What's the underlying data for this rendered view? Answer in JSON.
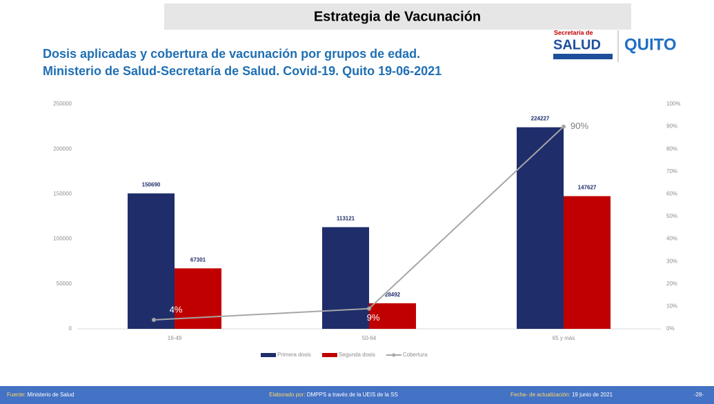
{
  "header": {
    "banner": "Estrategia de Vacunación",
    "logo_small": "Secretaría de",
    "logo_main": "SALUD",
    "logo_city": "QUITO"
  },
  "chart_data": {
    "type": "bar",
    "title": "Dosis aplicadas y cobertura de vacunación por grupos de edad.",
    "subtitle": "Ministerio de Salud-Secretaría de Salud. Covid-19. Quito 19-06-2021",
    "categories": [
      "16-49",
      "50-64",
      "65 y más"
    ],
    "series": [
      {
        "name": "Primera dosis",
        "color": "#1f2d6b",
        "values": [
          150690,
          113121,
          224227
        ]
      },
      {
        "name": "Segunda dosis",
        "color": "#c00000",
        "values": [
          67301,
          28492,
          147627
        ]
      },
      {
        "name": "Cobertura",
        "color": "#a6a6a6",
        "axis": "y2",
        "type": "line",
        "values": [
          4,
          9,
          90
        ],
        "value_labels": [
          "4%",
          "9%",
          "90%"
        ]
      }
    ],
    "ylim": [
      0,
      250000
    ],
    "yticks": [
      0,
      50000,
      100000,
      150000,
      200000,
      250000
    ],
    "y2lim": [
      0,
      100
    ],
    "y2ticks": [
      {
        "value": 0,
        "label": "0%"
      },
      {
        "value": 10,
        "label": "10%"
      },
      {
        "value": 20,
        "label": "20%"
      },
      {
        "value": 30,
        "label": "30%"
      },
      {
        "value": 40,
        "label": "40%"
      },
      {
        "value": 50,
        "label": "50%"
      },
      {
        "value": 60,
        "label": "60%"
      },
      {
        "value": 70,
        "label": "70%"
      },
      {
        "value": 80,
        "label": "80%"
      },
      {
        "value": 90,
        "label": "90%"
      },
      {
        "value": 100,
        "label": "100%"
      }
    ],
    "legend": "bottom"
  },
  "footer": {
    "source_label": "Fuente:",
    "source": "Ministerio de Salud",
    "made_label": "Elaborado por:",
    "made": "DMPPS a través de la UEIS de la SS",
    "date_label": "Fecha- de actualización:",
    "date": "19 junio de 2021",
    "page": "-28-"
  }
}
